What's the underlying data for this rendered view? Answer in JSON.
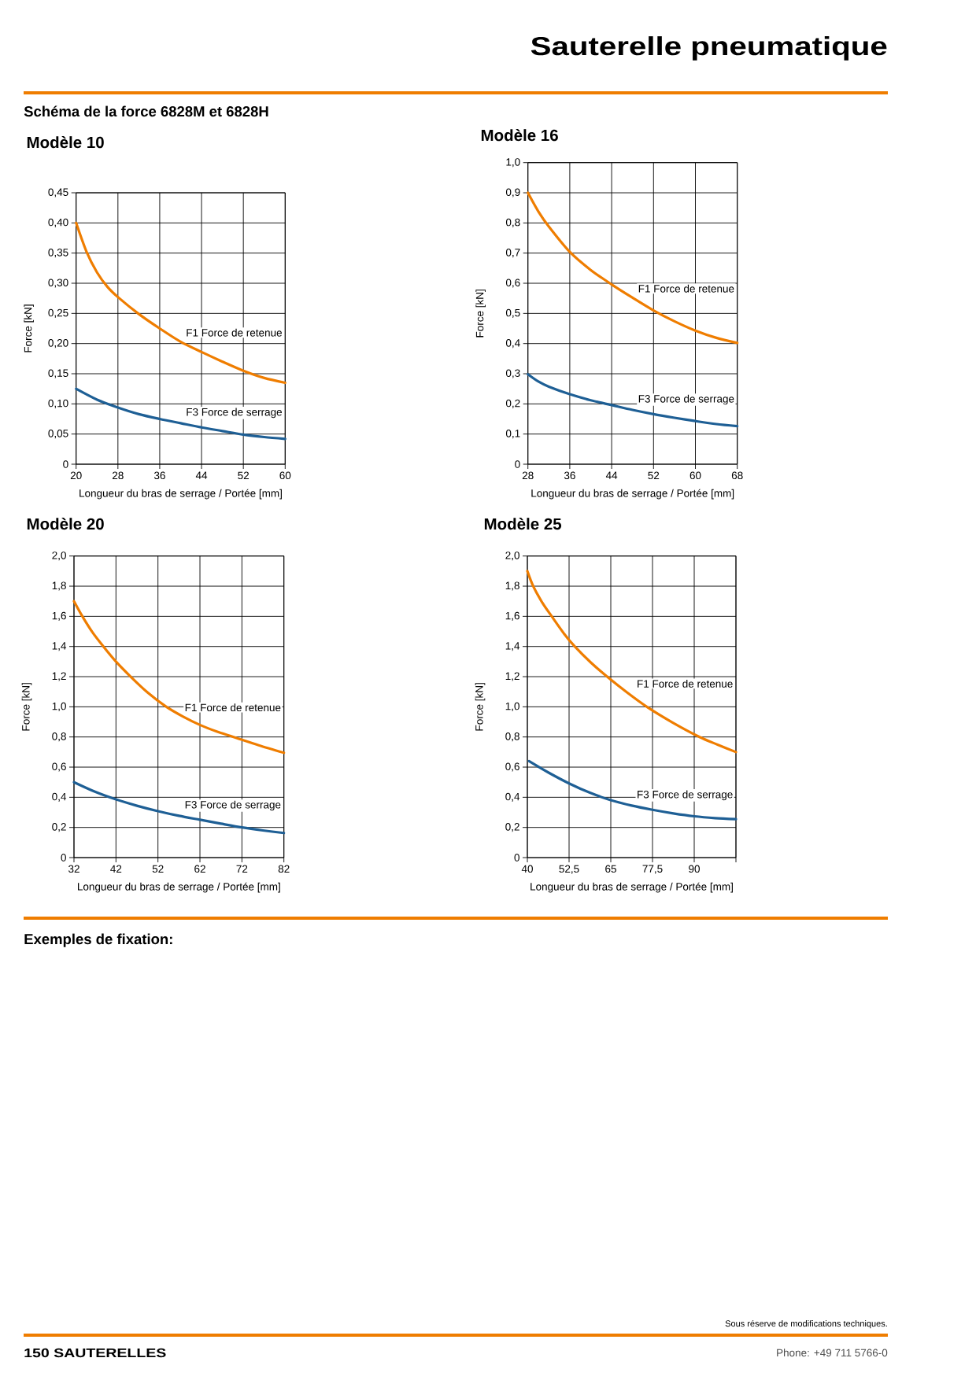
{
  "chart_data": [
    {
      "type": "line",
      "title": "Modèle 10",
      "xlabel": "Longueur du bras de serrage / Portée [mm]",
      "ylabel": "Force [kN]",
      "xlim": [
        20,
        60
      ],
      "xticks": [
        20,
        28,
        36,
        44,
        52,
        60
      ],
      "ylim": [
        0,
        0.45
      ],
      "yticks": [
        0,
        {
          "value": 0.05,
          "label": "0,05"
        },
        {
          "value": 0.1,
          "label": "0,10"
        },
        {
          "value": 0.15,
          "label": "0,15"
        },
        {
          "value": 0.2,
          "label": "0,20"
        },
        {
          "value": 0.25,
          "label": "0,25"
        },
        {
          "value": 0.3,
          "label": "0,30"
        },
        {
          "value": 0.35,
          "label": "0,35"
        },
        {
          "value": 0.4,
          "label": "0,40"
        },
        {
          "value": 0.45,
          "label": "0,45"
        }
      ],
      "grid": true,
      "series": [
        {
          "name": "F1 Force de retenue",
          "color": "#ef7d00",
          "x": [
            20,
            22,
            24,
            26,
            28,
            32,
            36,
            40,
            44,
            48,
            52,
            56,
            60
          ],
          "values": [
            0.4,
            0.352,
            0.318,
            0.294,
            0.277,
            0.249,
            0.225,
            0.203,
            0.186,
            0.17,
            0.155,
            0.143,
            0.135
          ]
        },
        {
          "name": "F3 Force de serrage",
          "color": "#1e5f95",
          "x": [
            20,
            24,
            28,
            32,
            36,
            40,
            44,
            48,
            52,
            56,
            60
          ],
          "values": [
            0.125,
            0.107,
            0.094,
            0.083,
            0.075,
            0.068,
            0.061,
            0.055,
            0.049,
            0.045,
            0.042
          ]
        }
      ],
      "annotations": [
        "Sauterelle pneumatique",
        "Schéma de la force 6828M et 6828H"
      ]
    },
    {
      "type": "line",
      "title": "Modèle 16",
      "xlabel": "Longueur du bras de serrage / Portée [mm]",
      "ylabel": "Force [kN]",
      "xlim": [
        28,
        68
      ],
      "xticks": [
        28,
        36,
        44,
        52,
        60,
        68
      ],
      "ylim": [
        0,
        1.0
      ],
      "yticks": [
        0,
        {
          "value": 0.1,
          "label": "0,1"
        },
        {
          "value": 0.2,
          "label": "0,2"
        },
        {
          "value": 0.3,
          "label": "0,3"
        },
        {
          "value": 0.4,
          "label": "0,4"
        },
        {
          "value": 0.5,
          "label": "0,5"
        },
        {
          "value": 0.6,
          "label": "0,6"
        },
        {
          "value": 0.7,
          "label": "0,7"
        },
        {
          "value": 0.8,
          "label": "0,8"
        },
        {
          "value": 0.9,
          "label": "0,9"
        },
        {
          "value": 1.0,
          "label": "1,0"
        }
      ],
      "grid": true,
      "series": [
        {
          "name": "F1 Force de retenue",
          "color": "#ef7d00",
          "x": [
            28,
            30,
            32,
            36,
            40,
            44,
            48,
            52,
            56,
            60,
            64,
            68
          ],
          "values": [
            0.9,
            0.838,
            0.788,
            0.704,
            0.644,
            0.596,
            0.552,
            0.51,
            0.474,
            0.443,
            0.419,
            0.402
          ]
        },
        {
          "name": "F3 Force de serrage",
          "color": "#1e5f95",
          "x": [
            28,
            30,
            32,
            36,
            40,
            44,
            48,
            52,
            56,
            60,
            64,
            68
          ],
          "values": [
            0.298,
            0.274,
            0.257,
            0.232,
            0.212,
            0.196,
            0.18,
            0.166,
            0.154,
            0.143,
            0.133,
            0.126
          ]
        }
      ]
    },
    {
      "type": "line",
      "title": "Modèle 20",
      "xlabel": "Longueur du bras de serrage / Portée [mm]",
      "ylabel": "Force [kN]",
      "xlim": [
        32,
        82
      ],
      "xticks": [
        32,
        42,
        52,
        62,
        72,
        82
      ],
      "ylim": [
        0,
        2.0
      ],
      "yticks": [
        0,
        {
          "value": 0.2,
          "label": "0,2"
        },
        {
          "value": 0.4,
          "label": "0,4"
        },
        {
          "value": 0.6,
          "label": "0,6"
        },
        {
          "value": 0.8,
          "label": "0,8"
        },
        {
          "value": 1.0,
          "label": "1,0"
        },
        {
          "value": 1.2,
          "label": "1,2"
        },
        {
          "value": 1.4,
          "label": "1,4"
        },
        {
          "value": 1.6,
          "label": "1,6"
        },
        {
          "value": 1.8,
          "label": "1,8"
        },
        {
          "value": 2.0,
          "label": "2,0"
        }
      ],
      "grid": true,
      "series": [
        {
          "name": "F1 Force de retenue",
          "color": "#ef7d00",
          "x": [
            32,
            34,
            36.5,
            39,
            42,
            45.5,
            49.5,
            54,
            58,
            62,
            66,
            70,
            76,
            82
          ],
          "values": [
            1.7,
            1.6,
            1.49,
            1.4,
            1.3,
            1.2,
            1.096,
            1.0,
            0.935,
            0.88,
            0.836,
            0.8,
            0.745,
            0.695
          ]
        },
        {
          "name": "F3 Force de serrage",
          "color": "#1e5f95",
          "x": [
            32,
            37,
            42,
            47,
            52,
            57,
            62,
            67,
            72,
            77,
            82
          ],
          "values": [
            0.5,
            0.437,
            0.386,
            0.344,
            0.308,
            0.277,
            0.251,
            0.225,
            0.2,
            0.18,
            0.163
          ]
        }
      ]
    },
    {
      "type": "line",
      "title": "Modèle 25",
      "xlabel": "Longueur du bras de serrage / Portée [mm]",
      "ylabel": "Force [kN]",
      "xlim": [
        40,
        102.5
      ],
      "xticks": [
        40,
        {
          "value": 52.5,
          "label": "52,5"
        },
        65,
        {
          "value": 77.5,
          "label": "77,5"
        },
        90,
        {
          "value": 102.5,
          "label": null
        }
      ],
      "ylim": [
        0,
        2.0
      ],
      "yticks": [
        0,
        {
          "value": 0.2,
          "label": "0,2"
        },
        {
          "value": 0.4,
          "label": "0,4"
        },
        {
          "value": 0.6,
          "label": "0,6"
        },
        {
          "value": 0.8,
          "label": "0,8"
        },
        {
          "value": 1.0,
          "label": "1,0"
        },
        {
          "value": 1.2,
          "label": "1,2"
        },
        {
          "value": 1.4,
          "label": "1,4"
        },
        {
          "value": 1.6,
          "label": "1,6"
        },
        {
          "value": 1.8,
          "label": "1,8"
        },
        {
          "value": 2.0,
          "label": "2,0"
        }
      ],
      "grid": true,
      "series": [
        {
          "name": "F1 Force de retenue",
          "color": "#ef7d00",
          "x": [
            40,
            41.75,
            44.5,
            47.3,
            51,
            54.2,
            59,
            63.9,
            70,
            75.8,
            83.5,
            91.6,
            97,
            102.5
          ],
          "values": [
            1.9,
            1.8,
            1.69,
            1.6,
            1.485,
            1.4,
            1.294,
            1.2,
            1.093,
            1.0,
            0.896,
            0.8,
            0.749,
            0.7
          ]
        },
        {
          "name": "F3 Force de serrage",
          "color": "#1e5f95",
          "x": [
            40.5,
            46.25,
            52.5,
            58.75,
            65,
            71.25,
            77.5,
            83.75,
            90,
            96.25,
            102.5
          ],
          "values": [
            0.64,
            0.565,
            0.492,
            0.43,
            0.381,
            0.345,
            0.317,
            0.293,
            0.274,
            0.262,
            0.255
          ]
        }
      ],
      "annotations": [
        "Exemples de fixation:",
        "Sous réserve de modifications techniques.",
        "150 SAUTERELLES",
        "Phone: +49 711 5766-0"
      ]
    }
  ]
}
